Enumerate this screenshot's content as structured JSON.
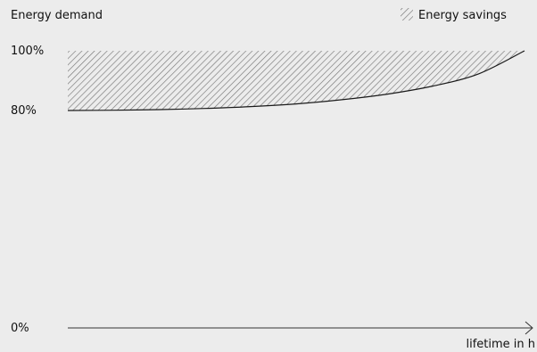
{
  "chart_data": {
    "type": "area",
    "title": "Energy demand",
    "xlabel": "lifetime in h",
    "ylabel": "Energy demand",
    "yticks": [
      {
        "label": "100%",
        "value": 100
      },
      {
        "label": "80%",
        "value": 80
      },
      {
        "label": "0%",
        "value": 0
      }
    ],
    "ylim": [
      0,
      100
    ],
    "xlim": [
      0,
      1
    ],
    "legend": {
      "label": "Energy savings",
      "position": "top-right",
      "pattern": "diagonal-hatch"
    },
    "series": [
      {
        "name": "",
        "x": [
          0,
          0.1,
          0.2,
          0.3,
          0.4,
          0.5,
          0.6,
          0.7,
          0.8,
          0.9,
          1.0
        ],
        "y": [
          80,
          80.1,
          80.3,
          80.7,
          81.3,
          82.2,
          83.6,
          85.5,
          88.2,
          92.3,
          100
        ]
      }
    ],
    "fill_region": {
      "between": "series-and-ymax",
      "label": "Energy savings"
    },
    "grid": false
  },
  "colors": {
    "background": "#ececec",
    "text": "#111111",
    "curve": "#1a1a1a",
    "axis": "#333333",
    "hatch": "#777777"
  }
}
